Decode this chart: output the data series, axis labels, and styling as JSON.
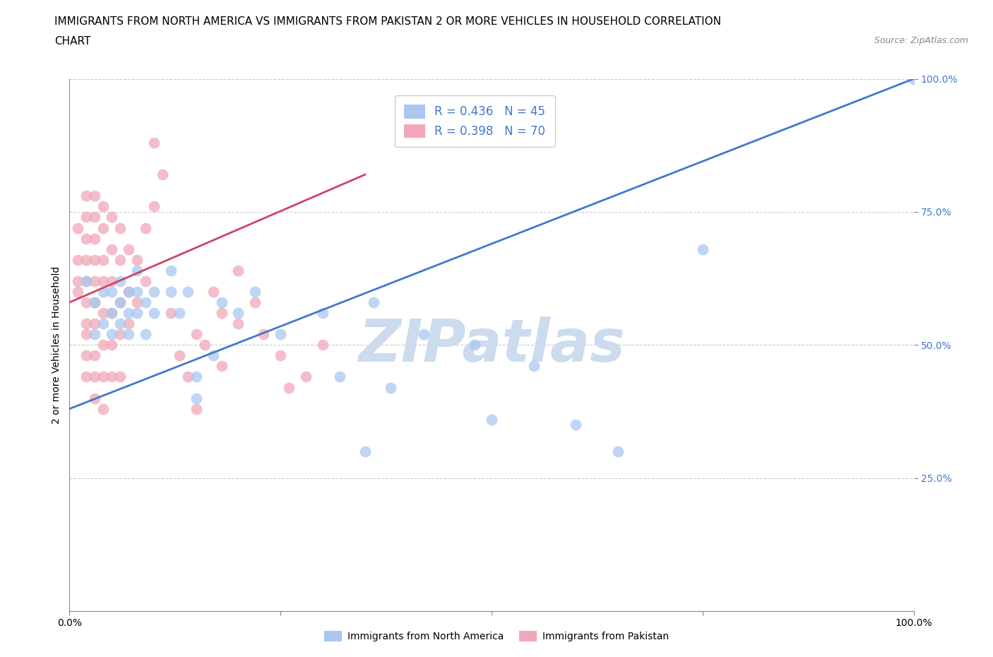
{
  "title_line1": "IMMIGRANTS FROM NORTH AMERICA VS IMMIGRANTS FROM PAKISTAN 2 OR MORE VEHICLES IN HOUSEHOLD CORRELATION",
  "title_line2": "CHART",
  "source": "Source: ZipAtlas.com",
  "ylabel": "2 or more Vehicles in Household",
  "xlim": [
    0,
    1
  ],
  "ylim": [
    0,
    1
  ],
  "ytick_labels": [
    "25.0%",
    "50.0%",
    "75.0%",
    "100.0%"
  ],
  "ytick_values": [
    0.25,
    0.5,
    0.75,
    1.0
  ],
  "blue_R": 0.436,
  "blue_N": 45,
  "pink_R": 0.398,
  "pink_N": 70,
  "blue_color": "#a8c8f0",
  "pink_color": "#f0a8b8",
  "blue_line_color": "#4477cc",
  "pink_line_color": "#cc4466",
  "blue_trendline_x": [
    0.0,
    1.0
  ],
  "blue_trendline_y": [
    0.38,
    1.0
  ],
  "pink_trendline_x": [
    0.0,
    0.35
  ],
  "pink_trendline_y": [
    0.58,
    0.82
  ],
  "watermark": "ZIPatlas",
  "blue_points": [
    [
      0.02,
      0.62
    ],
    [
      0.03,
      0.58
    ],
    [
      0.03,
      0.52
    ],
    [
      0.04,
      0.54
    ],
    [
      0.04,
      0.6
    ],
    [
      0.05,
      0.6
    ],
    [
      0.05,
      0.56
    ],
    [
      0.05,
      0.52
    ],
    [
      0.06,
      0.62
    ],
    [
      0.06,
      0.58
    ],
    [
      0.06,
      0.54
    ],
    [
      0.07,
      0.6
    ],
    [
      0.07,
      0.56
    ],
    [
      0.07,
      0.52
    ],
    [
      0.08,
      0.64
    ],
    [
      0.08,
      0.6
    ],
    [
      0.08,
      0.56
    ],
    [
      0.09,
      0.52
    ],
    [
      0.09,
      0.58
    ],
    [
      0.1,
      0.6
    ],
    [
      0.1,
      0.56
    ],
    [
      0.12,
      0.64
    ],
    [
      0.12,
      0.6
    ],
    [
      0.13,
      0.56
    ],
    [
      0.14,
      0.6
    ],
    [
      0.15,
      0.44
    ],
    [
      0.15,
      0.4
    ],
    [
      0.17,
      0.48
    ],
    [
      0.18,
      0.58
    ],
    [
      0.2,
      0.56
    ],
    [
      0.22,
      0.6
    ],
    [
      0.25,
      0.52
    ],
    [
      0.3,
      0.56
    ],
    [
      0.32,
      0.44
    ],
    [
      0.35,
      0.3
    ],
    [
      0.36,
      0.58
    ],
    [
      0.38,
      0.42
    ],
    [
      0.42,
      0.52
    ],
    [
      0.48,
      0.5
    ],
    [
      0.5,
      0.36
    ],
    [
      0.55,
      0.46
    ],
    [
      0.6,
      0.35
    ],
    [
      0.65,
      0.3
    ],
    [
      0.75,
      0.68
    ],
    [
      1.0,
      1.0
    ]
  ],
  "pink_points": [
    [
      0.01,
      0.72
    ],
    [
      0.01,
      0.66
    ],
    [
      0.01,
      0.62
    ],
    [
      0.01,
      0.6
    ],
    [
      0.02,
      0.78
    ],
    [
      0.02,
      0.74
    ],
    [
      0.02,
      0.7
    ],
    [
      0.02,
      0.66
    ],
    [
      0.02,
      0.62
    ],
    [
      0.02,
      0.58
    ],
    [
      0.02,
      0.54
    ],
    [
      0.02,
      0.52
    ],
    [
      0.02,
      0.48
    ],
    [
      0.02,
      0.44
    ],
    [
      0.03,
      0.78
    ],
    [
      0.03,
      0.74
    ],
    [
      0.03,
      0.7
    ],
    [
      0.03,
      0.66
    ],
    [
      0.03,
      0.62
    ],
    [
      0.03,
      0.58
    ],
    [
      0.03,
      0.54
    ],
    [
      0.03,
      0.48
    ],
    [
      0.03,
      0.44
    ],
    [
      0.03,
      0.4
    ],
    [
      0.04,
      0.76
    ],
    [
      0.04,
      0.72
    ],
    [
      0.04,
      0.66
    ],
    [
      0.04,
      0.62
    ],
    [
      0.04,
      0.56
    ],
    [
      0.04,
      0.5
    ],
    [
      0.04,
      0.44
    ],
    [
      0.04,
      0.38
    ],
    [
      0.05,
      0.74
    ],
    [
      0.05,
      0.68
    ],
    [
      0.05,
      0.62
    ],
    [
      0.05,
      0.56
    ],
    [
      0.05,
      0.5
    ],
    [
      0.05,
      0.44
    ],
    [
      0.06,
      0.72
    ],
    [
      0.06,
      0.66
    ],
    [
      0.06,
      0.58
    ],
    [
      0.06,
      0.52
    ],
    [
      0.06,
      0.44
    ],
    [
      0.07,
      0.68
    ],
    [
      0.07,
      0.6
    ],
    [
      0.07,
      0.54
    ],
    [
      0.08,
      0.66
    ],
    [
      0.08,
      0.58
    ],
    [
      0.09,
      0.72
    ],
    [
      0.09,
      0.62
    ],
    [
      0.1,
      0.88
    ],
    [
      0.1,
      0.76
    ],
    [
      0.11,
      0.82
    ],
    [
      0.12,
      0.56
    ],
    [
      0.13,
      0.48
    ],
    [
      0.14,
      0.44
    ],
    [
      0.15,
      0.38
    ],
    [
      0.15,
      0.52
    ],
    [
      0.16,
      0.5
    ],
    [
      0.17,
      0.6
    ],
    [
      0.18,
      0.56
    ],
    [
      0.18,
      0.46
    ],
    [
      0.2,
      0.64
    ],
    [
      0.2,
      0.54
    ],
    [
      0.22,
      0.58
    ],
    [
      0.23,
      0.52
    ],
    [
      0.25,
      0.48
    ],
    [
      0.26,
      0.42
    ],
    [
      0.28,
      0.44
    ],
    [
      0.3,
      0.5
    ]
  ],
  "legend_label_blue": "Immigrants from North America",
  "legend_label_pink": "Immigrants from Pakistan",
  "title_fontsize": 11,
  "axis_label_fontsize": 10,
  "tick_fontsize": 10,
  "legend_fontsize": 12,
  "watermark_color": "#ccdcee",
  "watermark_fontsize": 60,
  "grid_color": "#cccccc",
  "grid_style": "--"
}
